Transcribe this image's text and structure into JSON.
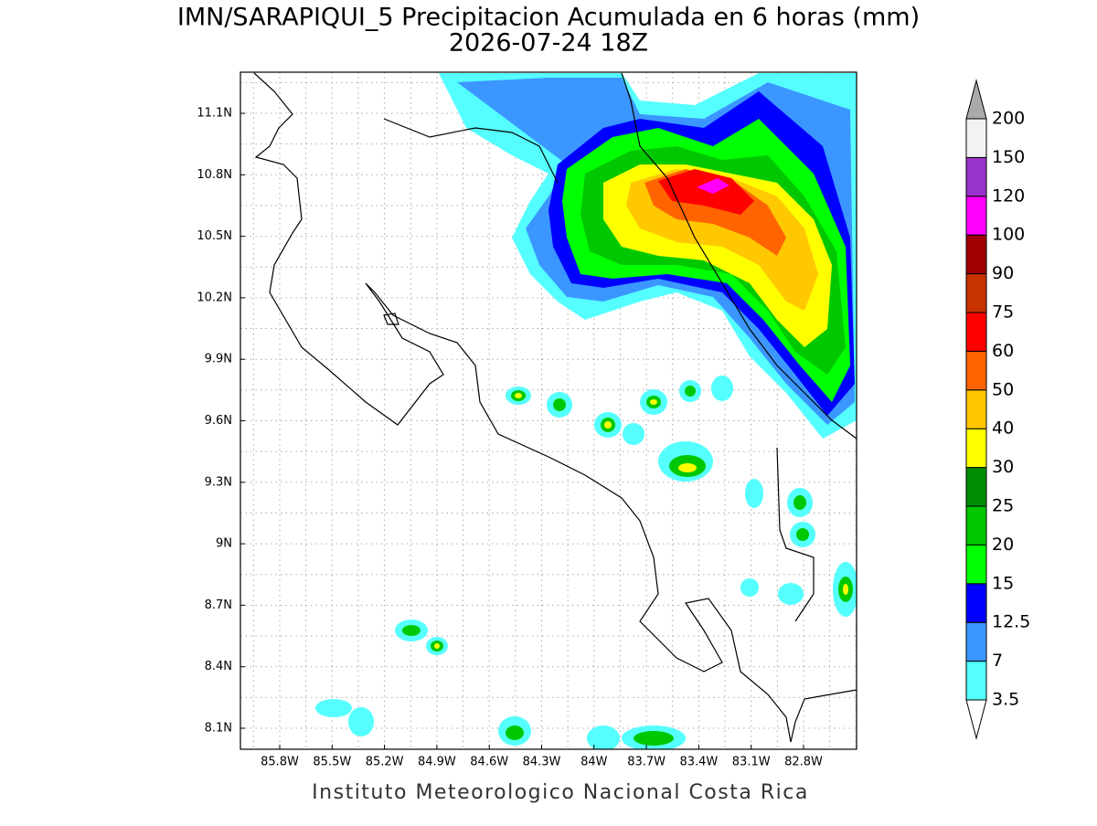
{
  "title": "IMN/SARAPIQUI_5 Precipitacion Acumulada en 6 horas (mm)",
  "subtitle": "2026-07-24 18Z",
  "map": {
    "lon_ticks": [
      "85.8W",
      "85.5W",
      "85.2W",
      "84.9W",
      "84.6W",
      "84.3W",
      "84W",
      "83.7W",
      "83.4W",
      "83.1W",
      "82.8W"
    ],
    "lat_ticks": [
      "11.1N",
      "10.8N",
      "10.5N",
      "10.2N",
      "9.9N",
      "9.6N",
      "9.3N",
      "9N",
      "8.7N",
      "8.4N",
      "8.1N"
    ]
  },
  "colorbar": {
    "levels": [
      "3.5",
      "7",
      "12.5",
      "15",
      "20",
      "25",
      "30",
      "40",
      "50",
      "60",
      "75",
      "90",
      "100",
      "120",
      "150",
      "200"
    ],
    "colors": [
      "#55ffff",
      "#3c96ff",
      "#0000ff",
      "#00ff00",
      "#00c800",
      "#008c00",
      "#ffff00",
      "#ffc800",
      "#ff6400",
      "#ff0000",
      "#c83200",
      "#a00000",
      "#ff00ff",
      "#9932cc",
      "#f2f2f2"
    ],
    "over_color": "#aaaaaa",
    "under_color": "#ffffff"
  },
  "footer": "Instituto Meteorologico Nacional Costa Rica"
}
